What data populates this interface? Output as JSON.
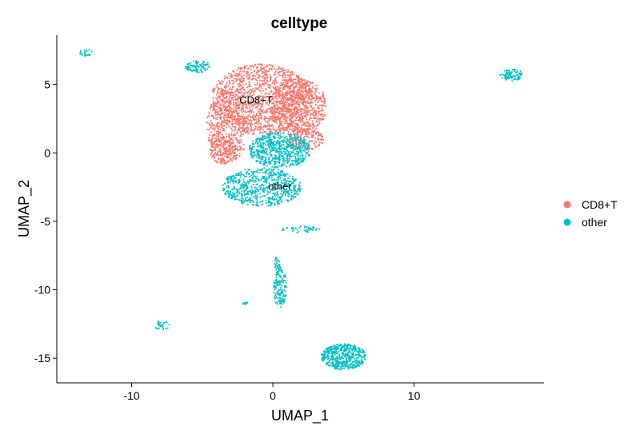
{
  "chart_data": {
    "type": "scatter",
    "title": "celltype",
    "xlabel": "UMAP_1",
    "ylabel": "UMAP_2",
    "xlim": [
      -15.3,
      19.2
    ],
    "ylim": [
      -16.8,
      8.6
    ],
    "xticks": [
      -10,
      0,
      10
    ],
    "yticks": [
      5,
      0,
      -5,
      -10,
      -15
    ],
    "grid": false,
    "legend_position": "right",
    "series": [
      {
        "name": "CD8+T",
        "color": "#F8766D",
        "label_position": [
          -1.2,
          3.6
        ],
        "clusters": [
          {
            "cx": -0.8,
            "cy": 3.9,
            "rx": 3.6,
            "ry": 2.6,
            "n": 1400
          },
          {
            "cx": 1.8,
            "cy": 3.4,
            "rx": 2.0,
            "ry": 2.1,
            "n": 700
          },
          {
            "cx": -3.2,
            "cy": 1.9,
            "rx": 1.5,
            "ry": 2.6,
            "n": 500
          },
          {
            "cx": -3.5,
            "cy": 0.2,
            "rx": 1.0,
            "ry": 1.0,
            "n": 160
          },
          {
            "cx": 2.3,
            "cy": 1.0,
            "rx": 1.3,
            "ry": 0.8,
            "n": 160
          }
        ]
      },
      {
        "name": "other",
        "color": "#00BFC4",
        "label_position": [
          0.5,
          -2.7
        ],
        "clusters": [
          {
            "cx": 0.5,
            "cy": 0.2,
            "rx": 2.2,
            "ry": 1.3,
            "n": 650
          },
          {
            "cx": -0.8,
            "cy": -2.5,
            "rx": 2.8,
            "ry": 1.4,
            "n": 650
          },
          {
            "cx": -5.3,
            "cy": 6.3,
            "rx": 0.9,
            "ry": 0.45,
            "n": 90
          },
          {
            "cx": 16.9,
            "cy": 5.7,
            "rx": 0.8,
            "ry": 0.45,
            "n": 90
          },
          {
            "cx": -13.2,
            "cy": 7.3,
            "rx": 0.5,
            "ry": 0.25,
            "n": 20
          },
          {
            "cx": 0.5,
            "cy": -9.8,
            "rx": 0.45,
            "ry": 1.5,
            "n": 140
          },
          {
            "cx": 0.3,
            "cy": -8.2,
            "rx": 0.2,
            "ry": 0.8,
            "n": 30
          },
          {
            "cx": -7.9,
            "cy": -12.6,
            "rx": 0.6,
            "ry": 0.35,
            "n": 30
          },
          {
            "cx": -2.0,
            "cy": -11.0,
            "rx": 0.35,
            "ry": 0.1,
            "n": 12
          },
          {
            "cx": 5.0,
            "cy": -14.9,
            "rx": 1.6,
            "ry": 0.95,
            "n": 500
          },
          {
            "cx": 2.0,
            "cy": -5.6,
            "rx": 1.4,
            "ry": 0.25,
            "n": 45
          }
        ]
      }
    ]
  }
}
